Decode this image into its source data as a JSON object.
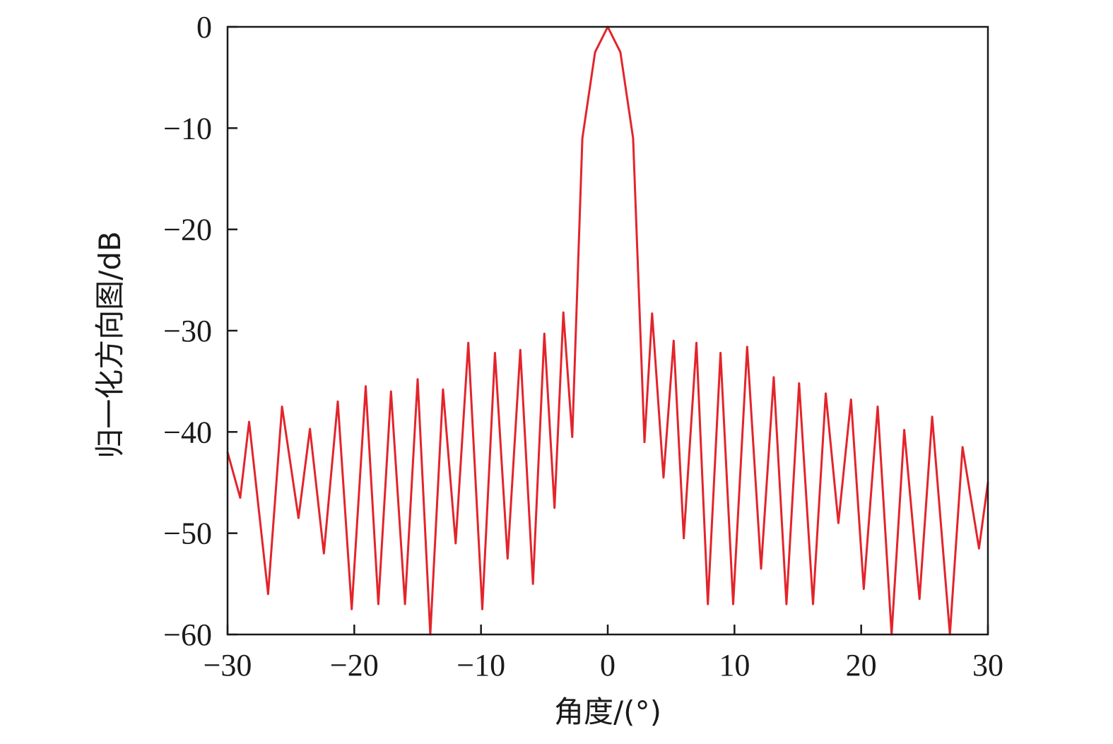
{
  "chart_data": {
    "type": "line",
    "xlabel": "角度/(°)",
    "ylabel": "归一化方向图/dB",
    "xlim": [
      -30,
      30
    ],
    "ylim": [
      -60,
      0
    ],
    "xticks": [
      -30,
      -20,
      -10,
      0,
      10,
      20,
      30
    ],
    "yticks": [
      0,
      -10,
      -20,
      -30,
      -40,
      -50,
      -60
    ],
    "xtick_labels": [
      "−30",
      "−20",
      "−10",
      "0",
      "10",
      "20",
      "30"
    ],
    "ytick_labels": [
      "0",
      "−10",
      "−20",
      "−30",
      "−40",
      "−50",
      "−60"
    ],
    "grid": false,
    "legend": "none",
    "series": [
      {
        "color": "#e3242b",
        "x": [
          -30.0,
          -29.0,
          -28.3,
          -26.8,
          -25.7,
          -24.4,
          -23.5,
          -22.4,
          -21.3,
          -20.2,
          -19.1,
          -18.1,
          -17.1,
          -16.0,
          -15.0,
          -14.0,
          -13.0,
          -12.0,
          -11.0,
          -9.9,
          -8.9,
          -7.9,
          -6.9,
          -5.9,
          -5.0,
          -4.2,
          -3.5,
          -2.8,
          -2.0,
          -1.0,
          0.0,
          1.0,
          2.0,
          2.9,
          3.5,
          4.4,
          5.2,
          6.0,
          7.0,
          7.9,
          8.9,
          9.9,
          11.0,
          12.1,
          13.1,
          14.1,
          15.1,
          16.2,
          17.2,
          18.2,
          19.2,
          20.2,
          21.3,
          22.4,
          23.4,
          24.6,
          25.6,
          27.0,
          28.0,
          29.3,
          30.0
        ],
        "y": [
          -42,
          -46.5,
          -39,
          -56,
          -37.5,
          -48.5,
          -39.7,
          -52,
          -37,
          -57.5,
          -35.5,
          -57,
          -36,
          -57,
          -34.8,
          -60,
          -35.8,
          -51,
          -31.2,
          -57.5,
          -32.2,
          -52.5,
          -31.9,
          -55,
          -30.3,
          -47.5,
          -28.2,
          -40.5,
          -11,
          -2.5,
          0,
          -2.5,
          -11,
          -41,
          -28.3,
          -44.5,
          -31,
          -50.5,
          -31.2,
          -57,
          -32.2,
          -57,
          -31.6,
          -53.5,
          -34.6,
          -57,
          -35.2,
          -57,
          -36.2,
          -49,
          -36.8,
          -55.5,
          -37.5,
          -60,
          -39.8,
          -56.5,
          -38.5,
          -60,
          -41.5,
          -51.5,
          -45
        ]
      }
    ]
  }
}
